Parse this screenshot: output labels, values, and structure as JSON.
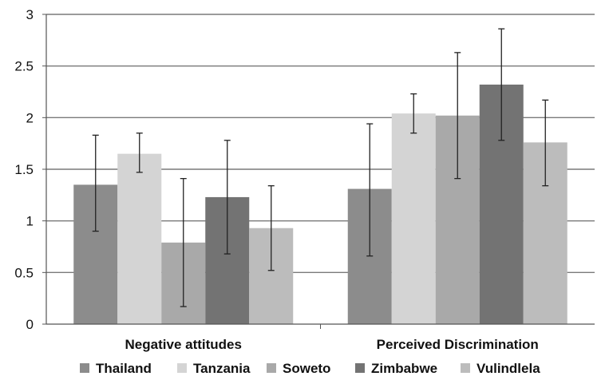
{
  "chart_data": {
    "type": "bar",
    "title": "",
    "xlabel": "",
    "ylabel": "",
    "ylim": [
      0,
      3
    ],
    "yticks": [
      "0",
      "0.5",
      "1",
      "1.5",
      "2",
      "2.5",
      "3"
    ],
    "grid": true,
    "legend_position": "bottom",
    "error_bars": true,
    "categories": [
      "Negative attitudes",
      "Perceived Discrimination"
    ],
    "series": [
      {
        "name": "Thailand",
        "color": "#8c8c8c",
        "values": [
          1.35,
          1.31
        ],
        "error_low": [
          0.9,
          0.66
        ],
        "error_high": [
          1.83,
          1.94
        ]
      },
      {
        "name": "Tanzania",
        "color": "#d4d4d4",
        "values": [
          1.65,
          2.04
        ],
        "error_low": [
          1.47,
          1.85
        ],
        "error_high": [
          1.85,
          2.23
        ]
      },
      {
        "name": "Soweto",
        "color": "#a9a9a9",
        "values": [
          0.79,
          2.02
        ],
        "error_low": [
          0.17,
          1.41
        ],
        "error_high": [
          1.41,
          2.63
        ]
      },
      {
        "name": "Zimbabwe",
        "color": "#737373",
        "values": [
          1.23,
          2.32
        ],
        "error_low": [
          0.68,
          1.78
        ],
        "error_high": [
          1.78,
          2.86
        ]
      },
      {
        "name": "Vulindlela",
        "color": "#bcbcbc",
        "values": [
          0.93,
          1.76
        ],
        "error_low": [
          0.52,
          1.34
        ],
        "error_high": [
          1.34,
          2.17
        ]
      }
    ]
  }
}
